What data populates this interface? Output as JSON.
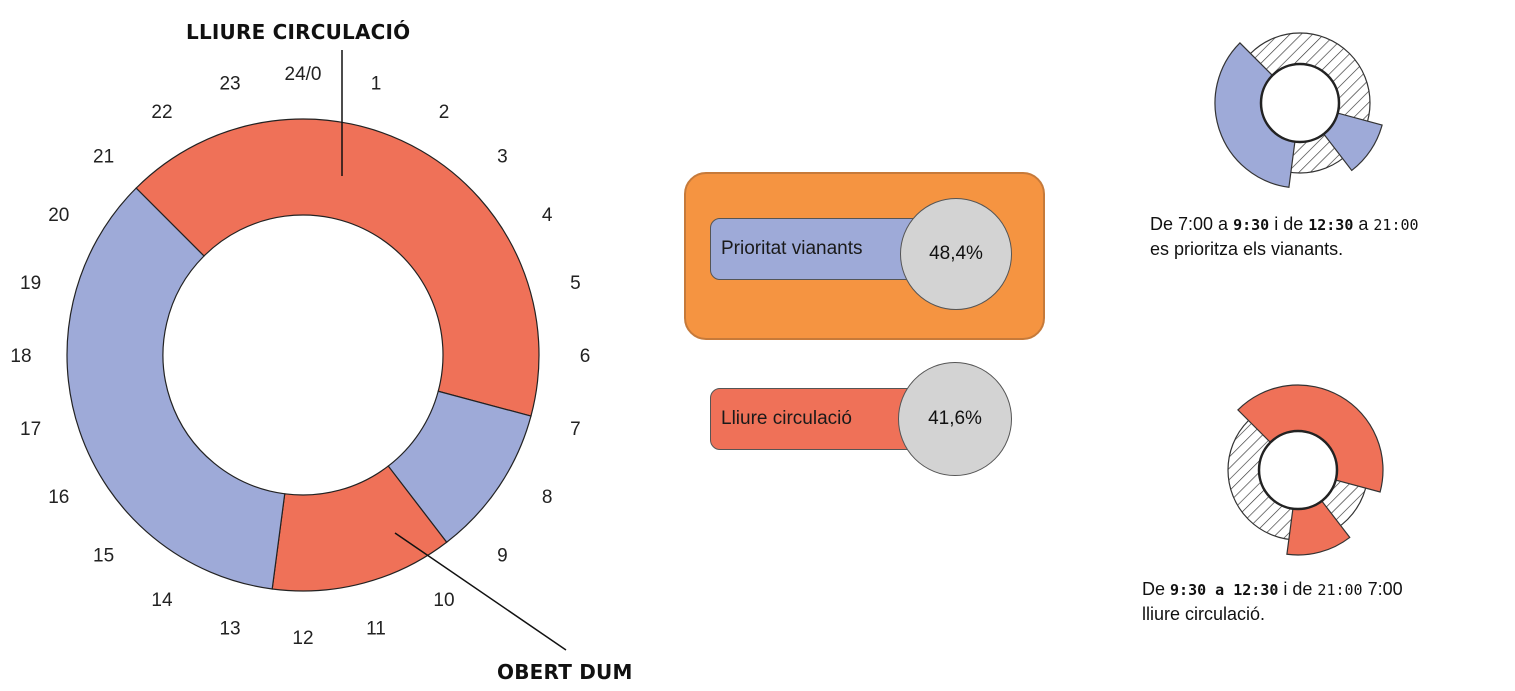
{
  "chart_data": {
    "type": "donut",
    "title_top": "LLIURE CIRCULACIÓ",
    "title_bottom": "OBERT DUM",
    "hour_labels": [
      "24/0",
      "1",
      "2",
      "3",
      "4",
      "5",
      "6",
      "7",
      "8",
      "9",
      "10",
      "11",
      "12",
      "13",
      "14",
      "15",
      "16",
      "17",
      "18",
      "19",
      "20",
      "21",
      "22",
      "23"
    ],
    "segments": [
      {
        "category": "Lliure circulació",
        "start": 21,
        "end": 7,
        "color": "#ef7158"
      },
      {
        "category": "Prioritat vianants",
        "start": 7,
        "end": 9.5,
        "color": "#9eaad8"
      },
      {
        "category": "Lliure circulació",
        "start": 9.5,
        "end": 12.5,
        "color": "#ef7158"
      },
      {
        "category": "Prioritat vianants",
        "start": 12.5,
        "end": 21,
        "color": "#9eaad8"
      }
    ]
  },
  "legend": {
    "items": [
      {
        "label": "Prioritat vianants",
        "value": "48,4%",
        "color": "#9eaad8",
        "highlighted": true
      },
      {
        "label": "Lliure circulació",
        "value": "41,6%",
        "color": "#ef7158",
        "highlighted": false
      }
    ],
    "highlight_color": "#f59441"
  },
  "mini_charts": {
    "pedestrians": {
      "note_parts": [
        "De 7:00 a ",
        "9:30",
        " i de ",
        "12:30",
        " a ",
        "21:00"
      ],
      "note_line2": "es prioritza els vianants."
    },
    "traffic": {
      "note_parts": [
        "De ",
        "9:30",
        " a ",
        "12:30",
        " i de ",
        "21:00",
        " 7:00"
      ],
      "note_line2": "lliure circulació."
    }
  }
}
